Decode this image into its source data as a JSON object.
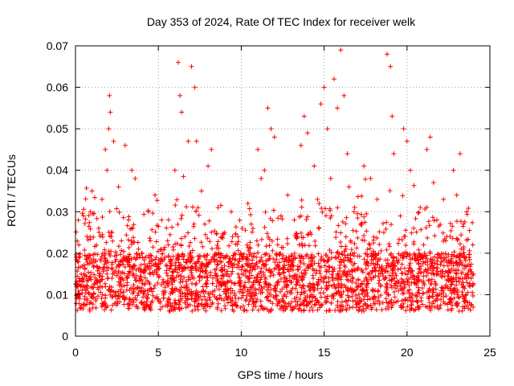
{
  "chart_data": {
    "type": "scatter",
    "title": "Day 353 of 2024, Rate Of TEC Index for receiver welk",
    "xlabel": "GPS time / hours",
    "ylabel": "ROTI / TECUs",
    "xlim": [
      0,
      25
    ],
    "ylim": [
      0,
      0.07
    ],
    "x_ticks": [
      0,
      5,
      10,
      15,
      20,
      25
    ],
    "y_ticks": [
      0,
      0.01,
      0.02,
      0.03,
      0.04,
      0.05,
      0.06,
      0.07
    ],
    "x_tick_labels": [
      "0",
      "5",
      "10",
      "15",
      "20",
      "25"
    ],
    "y_tick_labels": [
      "0",
      "0.01",
      "0.02",
      "0.03",
      "0.04",
      "0.05",
      "0.06",
      "0.07"
    ],
    "grid": true,
    "marker": "+",
    "marker_color": "#ff0000",
    "series": [
      {
        "name": "ROTI",
        "x": [
          0.1,
          0.2,
          0.3,
          0.5,
          0.7,
          0.9,
          1.0,
          1.2,
          1.4,
          1.6,
          1.8,
          1.9,
          2.0,
          2.05,
          2.1,
          2.2,
          2.3,
          2.4,
          2.6,
          2.8,
          3.0,
          3.2,
          3.4,
          3.5,
          3.6,
          3.8,
          4.0,
          4.2,
          4.4,
          4.6,
          4.8,
          5.0,
          5.2,
          5.4,
          5.6,
          5.8,
          6.0,
          6.2,
          6.3,
          6.4,
          6.6,
          6.8,
          7.0,
          7.2,
          7.3,
          7.4,
          7.6,
          7.8,
          8.0,
          8.2,
          8.4,
          8.6,
          8.8,
          9.0,
          9.2,
          9.4,
          9.6,
          9.8,
          10.0,
          10.2,
          10.4,
          10.6,
          10.8,
          11.0,
          11.2,
          11.4,
          11.6,
          11.8,
          12.0,
          12.2,
          12.4,
          12.6,
          12.8,
          13.0,
          13.2,
          13.4,
          13.6,
          13.8,
          14.0,
          14.2,
          14.4,
          14.6,
          14.8,
          15.0,
          15.2,
          15.4,
          15.6,
          15.8,
          16.0,
          16.2,
          16.4,
          16.5,
          16.6,
          16.8,
          17.0,
          17.2,
          17.4,
          17.6,
          17.8,
          18.0,
          18.2,
          18.4,
          18.6,
          18.8,
          19.0,
          19.1,
          19.2,
          19.4,
          19.6,
          19.8,
          20.0,
          20.2,
          20.4,
          20.6,
          20.8,
          21.0,
          21.2,
          21.4,
          21.6,
          21.8,
          22.0,
          22.2,
          22.4,
          22.6,
          22.8,
          23.0,
          23.2,
          23.4,
          23.6,
          23.8,
          24.0
        ],
        "y": [
          0.01,
          0.022,
          0.012,
          0.015,
          0.009,
          0.03,
          0.035,
          0.014,
          0.026,
          0.033,
          0.045,
          0.04,
          0.05,
          0.058,
          0.054,
          0.025,
          0.047,
          0.018,
          0.036,
          0.012,
          0.046,
          0.028,
          0.04,
          0.015,
          0.038,
          0.021,
          0.02,
          0.011,
          0.03,
          0.017,
          0.034,
          0.009,
          0.028,
          0.019,
          0.022,
          0.013,
          0.04,
          0.066,
          0.058,
          0.054,
          0.024,
          0.047,
          0.065,
          0.06,
          0.047,
          0.018,
          0.035,
          0.027,
          0.041,
          0.045,
          0.016,
          0.031,
          0.009,
          0.025,
          0.013,
          0.03,
          0.02,
          0.024,
          0.016,
          0.012,
          0.032,
          0.027,
          0.014,
          0.045,
          0.038,
          0.04,
          0.055,
          0.05,
          0.048,
          0.022,
          0.029,
          0.017,
          0.034,
          0.011,
          0.028,
          0.024,
          0.046,
          0.053,
          0.049,
          0.019,
          0.041,
          0.033,
          0.056,
          0.06,
          0.05,
          0.038,
          0.062,
          0.055,
          0.069,
          0.058,
          0.044,
          0.036,
          0.023,
          0.03,
          0.016,
          0.027,
          0.041,
          0.018,
          0.038,
          0.02,
          0.033,
          0.012,
          0.025,
          0.068,
          0.065,
          0.053,
          0.044,
          0.018,
          0.029,
          0.05,
          0.047,
          0.04,
          0.026,
          0.014,
          0.031,
          0.022,
          0.045,
          0.048,
          0.037,
          0.028,
          0.019,
          0.033,
          0.024,
          0.011,
          0.04,
          0.034,
          0.044,
          0.021,
          0.03,
          0.012,
          0.015
        ]
      }
    ]
  }
}
